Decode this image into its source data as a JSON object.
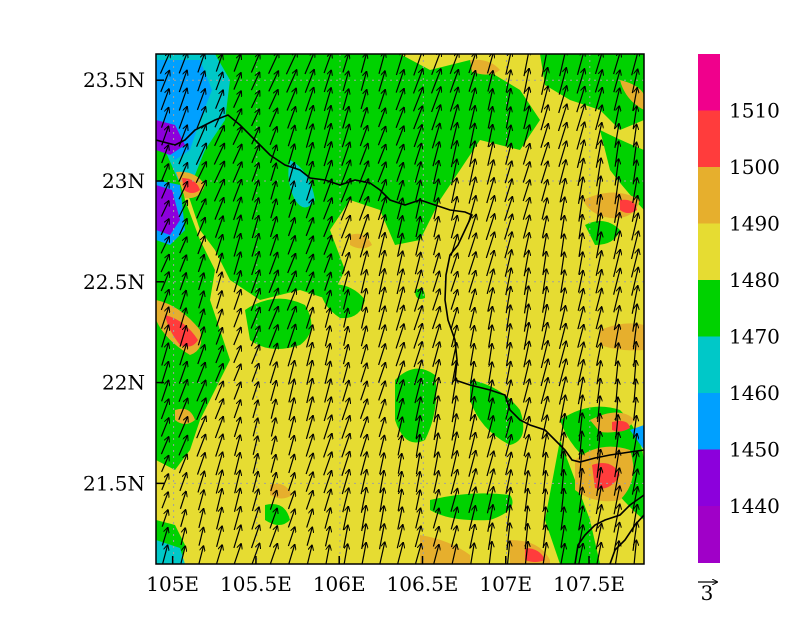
{
  "map": {
    "x_ticks": [
      "105E",
      "105.5E",
      "106E",
      "106.5E",
      "107E",
      "107.5E"
    ],
    "x_tick_values": [
      105,
      105.5,
      106,
      106.5,
      107,
      107.5
    ],
    "y_ticks": [
      "21.5N",
      "22N",
      "22.5N",
      "23N",
      "23.5N"
    ],
    "y_tick_values": [
      21.5,
      22,
      22.5,
      23,
      23.5
    ],
    "lon_range": [
      104.9,
      107.83
    ],
    "lat_range": [
      21.1,
      23.63
    ],
    "gridlines": "dotted",
    "field_colors": {
      "base": "#e6dc32",
      "green": "#00d200",
      "cyan": "#00c8c8",
      "blue": "#00a0ff",
      "purple": "#8c00dc",
      "orange": "#e6af2d",
      "red": "#ff3c3c",
      "magenta": "#f0008c"
    },
    "wind_direction": "south-southwest to north-northeast"
  },
  "colorbar": {
    "labels": [
      "1510",
      "1500",
      "1490",
      "1480",
      "1470",
      "1460",
      "1450",
      "1440"
    ],
    "colors_top_to_bottom": [
      "#f0008c",
      "#ff3c3c",
      "#e6af2d",
      "#e6dc32",
      "#00d200",
      "#00c8c8",
      "#00a0ff",
      "#8c00dc",
      "#a000c8"
    ]
  },
  "vector_reference": {
    "label": "3"
  }
}
